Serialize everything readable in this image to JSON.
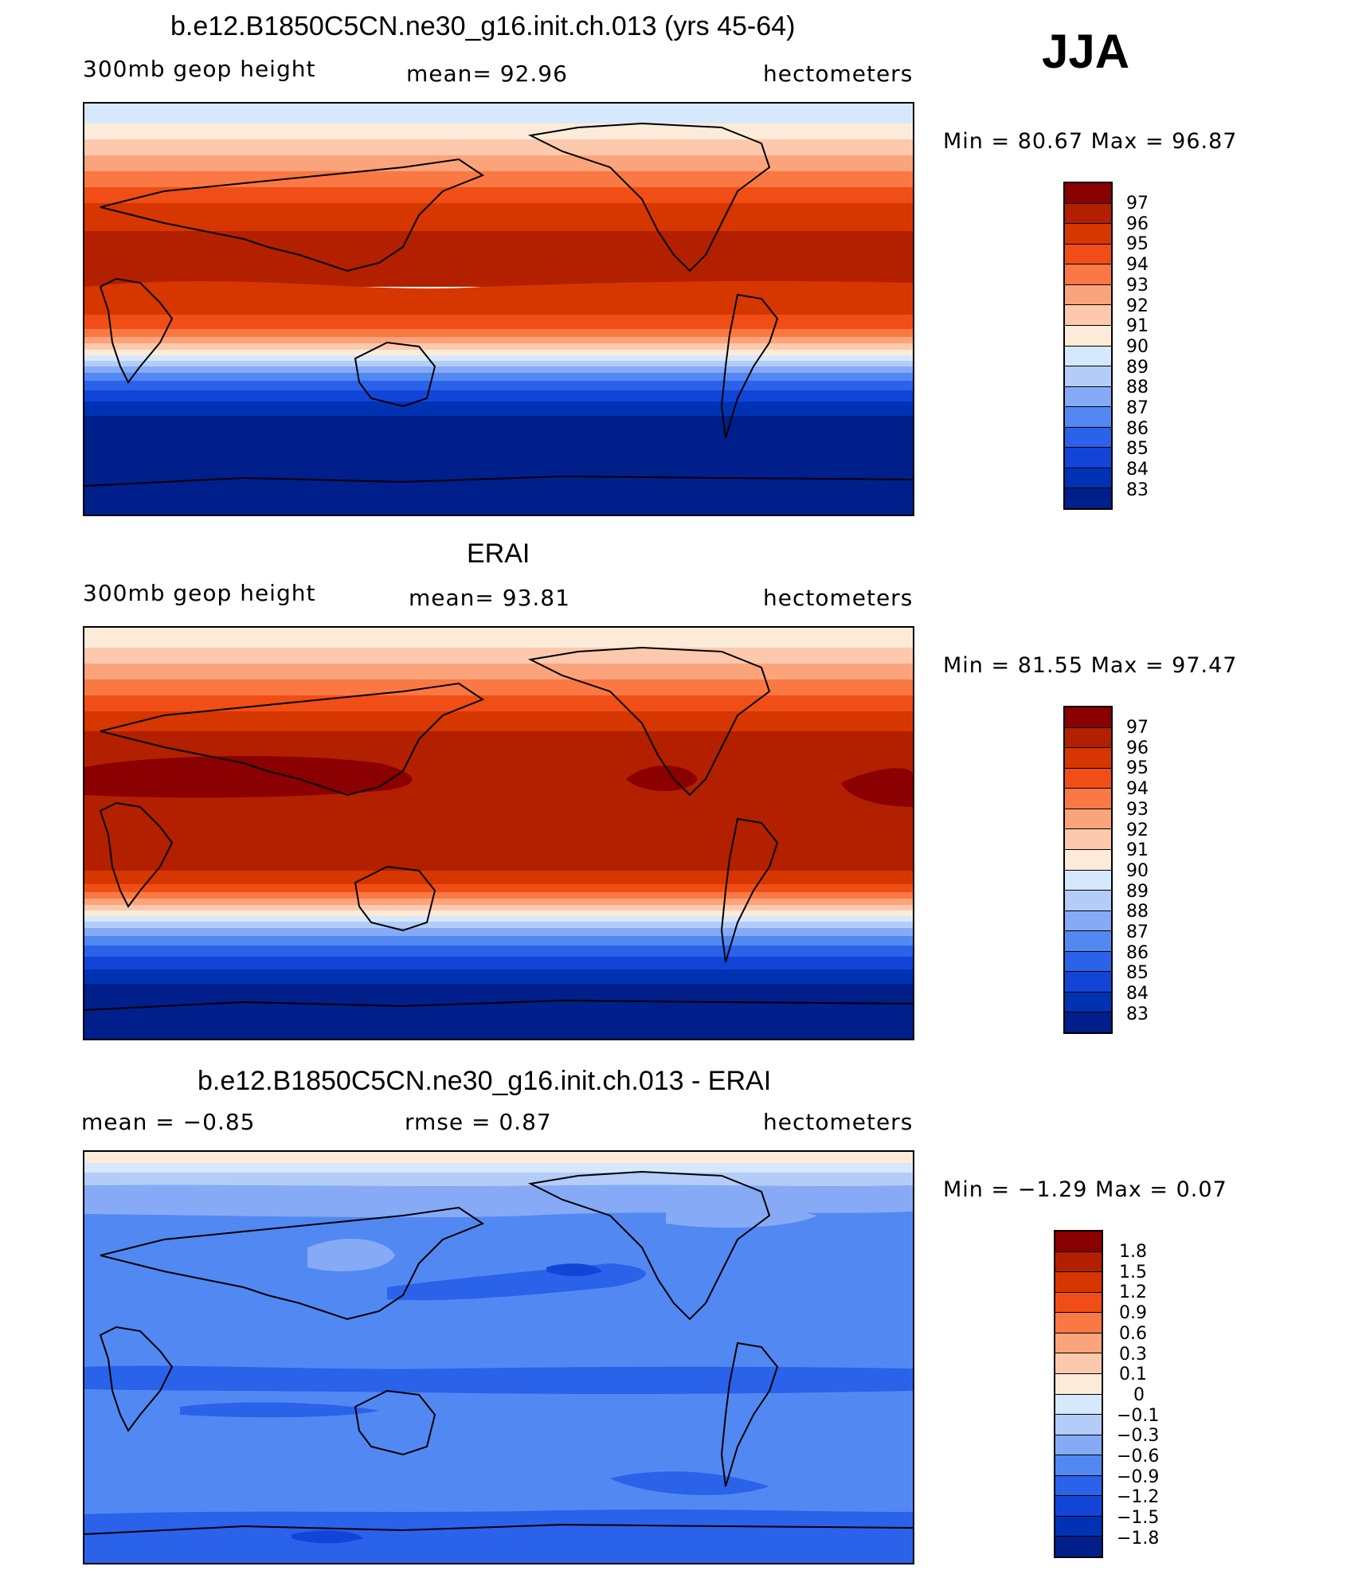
{
  "season": "JJA",
  "panels": [
    {
      "title": "b.e12.B1850C5CN.ne30_g16.init.ch.013 (yrs 45-64)",
      "left_label": "300mb geop height",
      "center_label": "mean=   92.96",
      "units": "hectometers",
      "min_max": "Min =   80.67  Max =   96.87",
      "legend_labels": [
        "97",
        "96",
        "95",
        "94",
        "93",
        "92",
        "91",
        "90",
        "89",
        "88",
        "87",
        "86",
        "85",
        "84",
        "83"
      ]
    },
    {
      "title": "ERAI",
      "left_label": "300mb geop height",
      "center_label": "mean=   93.81",
      "units": "hectometers",
      "min_max": "Min =   81.55  Max =   97.47",
      "legend_labels": [
        "97",
        "96",
        "95",
        "94",
        "93",
        "92",
        "91",
        "90",
        "89",
        "88",
        "87",
        "86",
        "85",
        "84",
        "83"
      ]
    },
    {
      "title": "b.e12.B1850C5CN.ne30_g16.init.ch.013 - ERAI",
      "left_label": "mean =   −0.85",
      "center_label": "rmse =     0.87",
      "units": "hectometers",
      "min_max": "Min =   −1.29  Max =     0.07",
      "legend_labels": [
        "1.8",
        "1.5",
        "1.2",
        "0.9",
        "0.6",
        "0.3",
        "0.1",
        "0",
        "−0.1",
        "−0.3",
        "−0.6",
        "−0.9",
        "−1.2",
        "−1.5",
        "−1.8"
      ]
    }
  ],
  "colors": {
    "palette": [
      "#8b0000",
      "#b22000",
      "#d63600",
      "#f04e16",
      "#fa7844",
      "#fba37a",
      "#fcc9ad",
      "#fdebd9",
      "#d6e8fb",
      "#b3cdf8",
      "#86aaf5",
      "#5288f2",
      "#2a62e9",
      "#1344d8",
      "#0033b4",
      "#001f8a"
    ]
  }
}
